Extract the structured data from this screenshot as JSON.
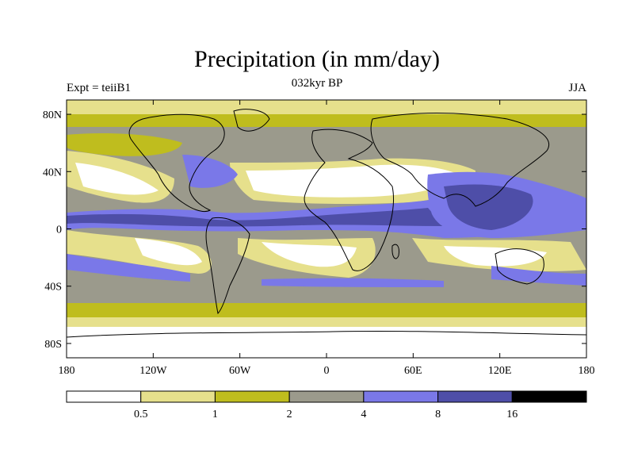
{
  "header": {
    "title": "Precipitation (in mm/day)",
    "subtitle": "032kyr BP",
    "left_label": "Expt = teiiB1",
    "right_label": "JJA"
  },
  "map": {
    "projection": "cylindrical-equidistant",
    "lon_range": [
      -180,
      180
    ],
    "lat_range": [
      -90,
      90
    ],
    "lat_ticks": [
      {
        "value": 80,
        "label": "80N"
      },
      {
        "value": 40,
        "label": "40N"
      },
      {
        "value": 0,
        "label": "0"
      },
      {
        "value": -40,
        "label": "40S"
      },
      {
        "value": -80,
        "label": "80S"
      }
    ],
    "lon_ticks": [
      {
        "value": -180,
        "label": "180"
      },
      {
        "value": -120,
        "label": "120W"
      },
      {
        "value": -60,
        "label": "60W"
      },
      {
        "value": 0,
        "label": "0"
      },
      {
        "value": 60,
        "label": "60E"
      },
      {
        "value": 120,
        "label": "120E"
      },
      {
        "value": 180,
        "label": "180"
      }
    ]
  },
  "colorbar": {
    "colors": [
      "#ffffff",
      "#e6e08c",
      "#bfbd1e",
      "#9b9a8c",
      "#7a78e8",
      "#4e4ea8",
      "#000000"
    ],
    "labels": [
      "0.5",
      "1",
      "2",
      "4",
      "8",
      "16"
    ]
  }
}
